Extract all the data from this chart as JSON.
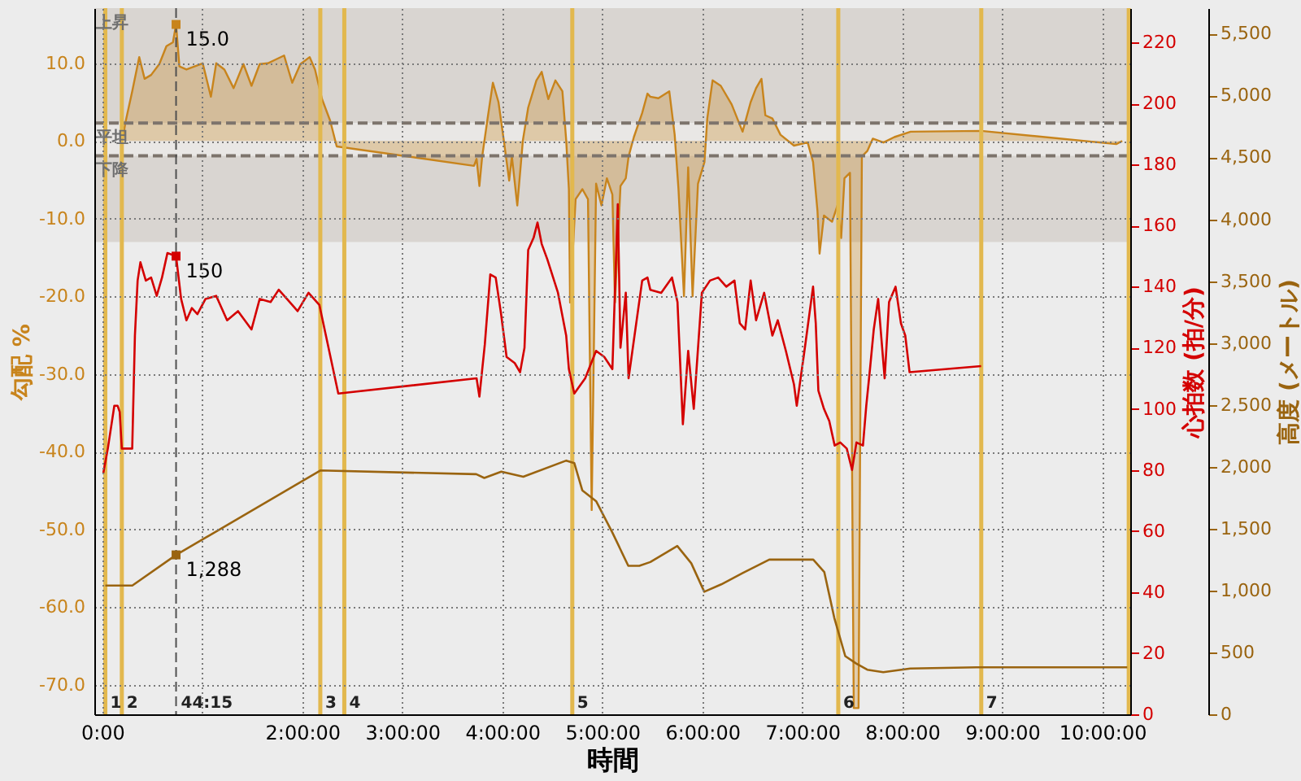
{
  "chart_data": {
    "type": "line",
    "xlabel": "時間",
    "ylabel": "勾配 %",
    "y2label": "心拍数 (拍/分)",
    "y3label": "高度 (メートル)",
    "xlim": [
      -0.08,
      10.28
    ],
    "xticks": [
      {
        "value": 0,
        "label": "0:00"
      },
      {
        "value": 1,
        "label": null
      },
      {
        "value": 2,
        "label": "2:00:00"
      },
      {
        "value": 3,
        "label": "3:00:00"
      },
      {
        "value": 4,
        "label": "4:00:00"
      },
      {
        "value": 5,
        "label": "5:00:00"
      },
      {
        "value": 6,
        "label": "6:00:00"
      },
      {
        "value": 7,
        "label": "7:00:00"
      },
      {
        "value": 8,
        "label": "8:00:00"
      },
      {
        "value": 9,
        "label": "9:00:00"
      },
      {
        "value": 10,
        "label": "10:00:00"
      }
    ],
    "ylim": [
      -73.8,
      17.1
    ],
    "yticks": [
      {
        "value": -70,
        "label": "-70.0"
      },
      {
        "value": -60,
        "label": "-60.0"
      },
      {
        "value": -50,
        "label": "-50.0"
      },
      {
        "value": -40,
        "label": "-40.0"
      },
      {
        "value": -30,
        "label": "-30.0"
      },
      {
        "value": -20,
        "label": "-20.0"
      },
      {
        "value": -10,
        "label": "-10.0"
      },
      {
        "value": 0,
        "label": "0.0"
      },
      {
        "value": 10,
        "label": "10.0"
      }
    ],
    "y2lim": [
      0,
      231.2
    ],
    "y2ticks": [
      0,
      20,
      40,
      60,
      80,
      100,
      120,
      140,
      160,
      180,
      200,
      220
    ],
    "y3lim": [
      0,
      5706
    ],
    "y3ticks": [
      0,
      500,
      {
        "value": 1000,
        "label": "1,000"
      },
      {
        "value": 1500,
        "label": "1,500"
      },
      {
        "value": 2000,
        "label": "2,000"
      },
      {
        "value": 2500,
        "label": "2,500"
      },
      {
        "value": 3000,
        "label": "3,000"
      },
      {
        "value": 3500,
        "label": "3,500"
      },
      {
        "value": 4000,
        "label": "4,000"
      },
      {
        "value": 4500,
        "label": "4,500"
      },
      {
        "value": 5000,
        "label": "5,000"
      },
      {
        "value": 5500,
        "label": "5,500"
      }
    ],
    "grid": true,
    "bands": [
      {
        "axis": "y",
        "from": 2.3,
        "to": 17.1,
        "label": "上昇",
        "color": "#d9d5d1"
      },
      {
        "axis": "y",
        "from": -1.9,
        "to": 2.3,
        "label": "平坦",
        "color": "#e9e7e5"
      },
      {
        "axis": "y",
        "from": -13,
        "to": -1.9,
        "label": "下降",
        "color": "#d9d5d1"
      }
    ],
    "ref_lines": [
      {
        "axis": "y",
        "value": 2.3,
        "line_style": "dashed",
        "color": "#7d746c"
      },
      {
        "axis": "y",
        "value": -1.9,
        "line_style": "dashed",
        "color": "#7d746c"
      },
      {
        "axis": "x",
        "value": 0.03,
        "color": "#e2b84e"
      },
      {
        "axis": "x",
        "value": 0.195,
        "color": "#e2b84e"
      },
      {
        "axis": "x",
        "value": 2.18,
        "color": "#e2b84e"
      },
      {
        "axis": "x",
        "value": 2.42,
        "color": "#e2b84e"
      },
      {
        "axis": "x",
        "value": 4.7,
        "color": "#e2b84e"
      },
      {
        "axis": "x",
        "value": 7.36,
        "color": "#e2b84e"
      },
      {
        "axis": "x",
        "value": 8.79,
        "color": "#e2b84e"
      },
      {
        "axis": "x",
        "value": 10.265,
        "color": "#e2b84e"
      },
      {
        "axis": "x",
        "value": 0.7375,
        "line_style": "dashed",
        "color": "#505050"
      }
    ],
    "annotations": [
      {
        "text": "1",
        "x": 0.03,
        "y": -73.8
      },
      {
        "text": "2",
        "x": 0.195,
        "y": -73.8
      },
      {
        "text": "44:15",
        "x": 0.7375,
        "y": -73.8
      },
      {
        "text": "3",
        "x": 2.18,
        "y": -73.8
      },
      {
        "text": "4",
        "x": 2.42,
        "y": -73.8
      },
      {
        "text": "5",
        "x": 4.7,
        "y": -73.8
      },
      {
        "text": "6",
        "x": 7.36,
        "y": -73.8
      },
      {
        "text": "7",
        "x": 8.79,
        "y": -73.8
      }
    ],
    "series": [
      {
        "type": "area",
        "axis": "y",
        "color": "#c8841c",
        "x": [
          0.207,
          0.228,
          0.299,
          0.369,
          0.423,
          0.488,
          0.57,
          0.641,
          0.706,
          0.7375,
          0.771,
          0.841,
          0.923,
          1.004,
          1.086,
          1.139,
          1.221,
          1.313,
          1.411,
          1.492,
          1.574,
          1.655,
          1.737,
          1.818,
          1.899,
          1.981,
          2.074,
          2.127,
          2.197,
          2.279,
          2.344,
          3.717,
          3.743,
          3.771,
          3.799,
          3.853,
          3.906,
          3.962,
          4.015,
          4.069,
          4.096,
          4.15,
          4.206,
          4.259,
          4.341,
          4.394,
          4.46,
          4.531,
          4.601,
          4.639,
          4.666,
          4.678,
          4.733,
          4.801,
          4.857,
          4.894,
          4.938,
          4.992,
          5.046,
          5.101,
          5.127,
          5.182,
          5.235,
          5.263,
          5.316,
          5.399,
          5.452,
          5.48,
          5.561,
          5.67,
          5.724,
          5.762,
          5.817,
          5.859,
          5.903,
          5.957,
          6.022,
          6.05,
          6.103,
          6.185,
          6.294,
          6.403,
          6.484,
          6.538,
          6.592,
          6.631,
          6.701,
          6.782,
          6.917,
          7.054,
          7.108,
          7.152,
          7.173,
          7.217,
          7.298,
          7.352,
          7.389,
          7.422,
          7.477,
          7.515,
          7.563,
          7.596,
          7.65,
          7.705,
          7.812,
          7.921,
          8.084,
          8.789,
          10.14,
          10.2
        ],
        "values": [
          0.4,
          2.2,
          6.4,
          10.8,
          8.0,
          8.5,
          9.9,
          12.2,
          12.7,
          15.0,
          9.6,
          9.2,
          9.6,
          10.0,
          5.7,
          10.0,
          9.2,
          6.8,
          9.9,
          7.1,
          9.9,
          10.0,
          10.5,
          11.0,
          7.5,
          9.9,
          10.8,
          9.2,
          5.4,
          2.6,
          -0.7,
          -3.2,
          -2.3,
          -5.8,
          -2.0,
          2.9,
          7.5,
          5.0,
          0.1,
          -5.1,
          -2.0,
          -8.3,
          0.1,
          4.3,
          7.8,
          8.9,
          5.4,
          7.8,
          6.4,
          0.1,
          -6.2,
          -20.8,
          -7.5,
          -6.2,
          -7.5,
          -47.5,
          -5.5,
          -8.3,
          -4.8,
          -6.9,
          -20.8,
          -5.8,
          -4.8,
          -2.0,
          0.5,
          3.6,
          6.1,
          5.7,
          5.5,
          6.4,
          0.8,
          -6.2,
          -20.0,
          -3.4,
          -20.0,
          -5.5,
          -2.7,
          2.9,
          7.8,
          7.1,
          4.7,
          1.2,
          5.0,
          6.8,
          8.0,
          3.3,
          2.9,
          0.8,
          -0.6,
          -0.2,
          -2.7,
          -9.0,
          -14.5,
          -9.6,
          -10.4,
          -8.3,
          -12.5,
          -4.8,
          -4.1,
          -73.0,
          -73.0,
          -2.0,
          -1.3,
          0.3,
          -0.2,
          0.5,
          1.2,
          1.3,
          -0.4,
          0.0
        ],
        "value_labels": [
          null,
          null,
          null,
          null,
          null,
          null,
          null,
          null,
          null,
          "15.0",
          null,
          null,
          null,
          null,
          null,
          null,
          null,
          null,
          null,
          null,
          null,
          null,
          null,
          null,
          null,
          null,
          null,
          null,
          null,
          null,
          null,
          null,
          null,
          null,
          null,
          null,
          null,
          null,
          null,
          null,
          null,
          null,
          null,
          null,
          null,
          null,
          null,
          null,
          null,
          null,
          null,
          null,
          null,
          null,
          null,
          null,
          null,
          null,
          null,
          null,
          null,
          null,
          null,
          null,
          null,
          null,
          null,
          null,
          null,
          null,
          null,
          null,
          null,
          null,
          null,
          null,
          null,
          null,
          null,
          null,
          null,
          null,
          null,
          null,
          null,
          null,
          null,
          null,
          null,
          null,
          null,
          null,
          null,
          null,
          null,
          null,
          null,
          null,
          null,
          null,
          null,
          null,
          null,
          null,
          null,
          null,
          null,
          null,
          null,
          null
        ]
      },
      {
        "axis": "y3",
        "color": "#9a6410",
        "x": [
          0.03,
          0.3,
          0.7375,
          2.18,
          3.74,
          3.82,
          3.99,
          4.21,
          4.64,
          4.72,
          4.8,
          4.94,
          5.1,
          5.26,
          5.37,
          5.48,
          5.75,
          5.89,
          6.02,
          6.19,
          6.4,
          6.67,
          7.11,
          7.22,
          7.32,
          7.43,
          7.54,
          7.65,
          7.81,
          8.08,
          8.74,
          10.25
        ],
        "values": [
          1040,
          1040,
          1288,
          1970,
          1940,
          1910,
          1960,
          1920,
          2050,
          2030,
          1810,
          1720,
          1470,
          1200,
          1200,
          1230,
          1360,
          1220,
          990,
          1050,
          1140,
          1250,
          1250,
          1150,
          780,
          470,
          410,
          360,
          340,
          370,
          380,
          380
        ],
        "value_labels": [
          null,
          null,
          "1,288",
          null,
          null,
          null,
          null,
          null,
          null,
          null,
          null,
          null,
          null,
          null,
          null,
          null,
          null,
          null,
          null,
          null,
          null,
          null,
          null,
          null,
          null,
          null,
          null,
          null,
          null,
          null,
          null,
          null
        ]
      },
      {
        "axis": "y2",
        "color": "#d40000",
        "x": [
          0.01,
          0.055,
          0.12,
          0.153,
          0.174,
          0.195,
          0.299,
          0.326,
          0.353,
          0.381,
          0.435,
          0.488,
          0.544,
          0.597,
          0.651,
          0.7375,
          0.788,
          0.841,
          0.895,
          0.951,
          1.032,
          1.139,
          1.248,
          1.357,
          1.492,
          1.574,
          1.683,
          1.764,
          1.846,
          1.953,
          2.062,
          2.171,
          2.36,
          3.743,
          3.771,
          3.825,
          3.88,
          3.934,
          3.988,
          4.043,
          4.124,
          4.178,
          4.222,
          4.259,
          4.313,
          4.352,
          4.394,
          4.45,
          4.557,
          4.639,
          4.666,
          4.72,
          4.829,
          4.938,
          5.02,
          5.101,
          5.155,
          5.182,
          5.235,
          5.263,
          5.399,
          5.452,
          5.48,
          5.589,
          5.697,
          5.752,
          5.806,
          5.859,
          5.915,
          5.996,
          6.077,
          6.159,
          6.24,
          6.322,
          6.375,
          6.429,
          6.484,
          6.538,
          6.619,
          6.701,
          6.755,
          6.836,
          6.917,
          6.945,
          7.026,
          7.108,
          7.135,
          7.161,
          7.217,
          7.27,
          7.324,
          7.38,
          7.445,
          7.498,
          7.542,
          7.607,
          7.64,
          7.677,
          7.715,
          7.759,
          7.824,
          7.868,
          7.933,
          7.987,
          8.03,
          8.073,
          8.789
        ],
        "values": [
          79,
          87,
          101,
          101,
          99,
          87,
          87,
          124,
          142,
          148,
          142,
          143,
          137,
          143,
          151,
          150,
          136,
          129,
          133,
          131,
          136,
          137,
          129,
          132,
          126,
          136,
          135,
          139,
          136,
          132,
          138,
          134,
          105,
          110,
          104,
          121,
          144,
          143,
          131,
          117,
          115,
          112,
          120,
          152,
          156,
          161,
          154,
          149,
          138,
          124,
          113,
          105,
          110,
          119,
          117,
          113,
          167,
          120,
          138,
          110,
          142,
          143,
          139,
          138,
          143,
          135,
          95,
          119,
          100,
          138,
          142,
          143,
          140,
          142,
          128,
          126,
          142,
          129,
          138,
          124,
          129,
          119,
          108,
          101,
          120,
          140,
          128,
          106,
          100,
          96,
          88,
          89,
          87,
          80,
          89,
          88,
          101,
          113,
          126,
          136,
          110,
          135,
          140,
          128,
          124,
          112,
          114
        ],
        "value_labels": [
          null,
          null,
          null,
          null,
          null,
          null,
          null,
          null,
          null,
          null,
          null,
          null,
          null,
          null,
          null,
          "150",
          null,
          null,
          null,
          null,
          null,
          null,
          null,
          null,
          null,
          null,
          null,
          null,
          null,
          null,
          null,
          null,
          null,
          null,
          null,
          null,
          null,
          null,
          null,
          null,
          null,
          null,
          null,
          null,
          null,
          null,
          null,
          null,
          null,
          null,
          null,
          null,
          null,
          null,
          null,
          null,
          null,
          null,
          null,
          null,
          null,
          null,
          null,
          null,
          null,
          null,
          null,
          null,
          null,
          null,
          null,
          null,
          null,
          null,
          null,
          null,
          null,
          null,
          null,
          null,
          null,
          null,
          null,
          null,
          null,
          null,
          null,
          null,
          null,
          null,
          null,
          null,
          null,
          null,
          null,
          null,
          null,
          null,
          null,
          null,
          null,
          null,
          null,
          null,
          null,
          null,
          null
        ]
      }
    ]
  }
}
